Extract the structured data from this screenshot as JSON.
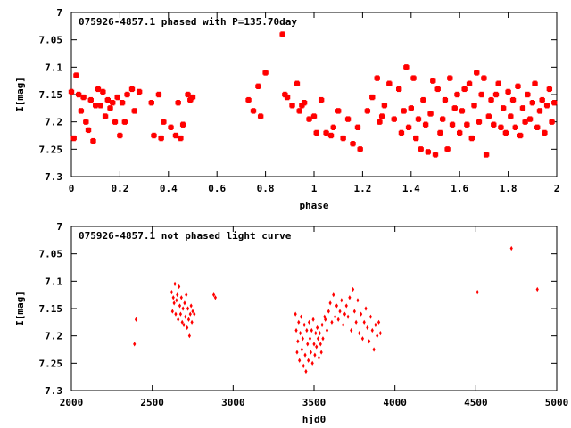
{
  "chart_data": [
    {
      "type": "scatter",
      "title": "075926-4857.1 phased with P=135.70day",
      "xlabel": "phase",
      "ylabel": "I[mag]",
      "xlim": [
        0,
        2
      ],
      "ylim": [
        7.3,
        7.0
      ],
      "y_inverted": true,
      "xticks": [
        "0",
        "0.2",
        "0.4",
        "0.6",
        "0.8",
        "1",
        "1.2",
        "1.4",
        "1.6",
        "1.8",
        "2"
      ],
      "yticks": [
        "7",
        "7.05",
        "7.1",
        "7.15",
        "7.2",
        "7.25",
        "7.3"
      ],
      "marker": "star",
      "color": "#ff0000",
      "grid": false,
      "series": [
        {
          "x": [
            0.0,
            0.01,
            0.02,
            0.03,
            0.04,
            0.05,
            0.06,
            0.07,
            0.08,
            0.09,
            0.1,
            0.11,
            0.12,
            0.13,
            0.14,
            0.15,
            0.16,
            0.17,
            0.18,
            0.19,
            0.2,
            0.21,
            0.22,
            0.23,
            0.25,
            0.26,
            0.28,
            0.33,
            0.34,
            0.36,
            0.37,
            0.38,
            0.41,
            0.43,
            0.44,
            0.45,
            0.46,
            0.48,
            0.49,
            0.5,
            0.73,
            0.75,
            0.77,
            0.78,
            0.8,
            0.87,
            0.88,
            0.89,
            0.91,
            0.93,
            0.94,
            0.95,
            0.96,
            0.98,
            1.0,
            1.01,
            1.03,
            1.05,
            1.07,
            1.08,
            1.1,
            1.12,
            1.14,
            1.16,
            1.18,
            1.19,
            1.22,
            1.24,
            1.26,
            1.27,
            1.28,
            1.29,
            1.31,
            1.33,
            1.35,
            1.36,
            1.37,
            1.38,
            1.39,
            1.4,
            1.41,
            1.42,
            1.43,
            1.44,
            1.45,
            1.46,
            1.47,
            1.48,
            1.49,
            1.5,
            1.51,
            1.52,
            1.53,
            1.54,
            1.55,
            1.56,
            1.57,
            1.58,
            1.59,
            1.6,
            1.61,
            1.62,
            1.63,
            1.64,
            1.65,
            1.66,
            1.67,
            1.68,
            1.69,
            1.7,
            1.71,
            1.72,
            1.73,
            1.74,
            1.75,
            1.76,
            1.77,
            1.78,
            1.79,
            1.8,
            1.81,
            1.82,
            1.83,
            1.84,
            1.85,
            1.86,
            1.87,
            1.88,
            1.89,
            1.9,
            1.91,
            1.92,
            1.93,
            1.94,
            1.95,
            1.96,
            1.97,
            1.98,
            1.99
          ],
          "y": [
            7.145,
            7.23,
            7.115,
            7.15,
            7.18,
            7.155,
            7.2,
            7.215,
            7.16,
            7.235,
            7.17,
            7.14,
            7.17,
            7.145,
            7.19,
            7.16,
            7.175,
            7.165,
            7.2,
            7.155,
            7.225,
            7.165,
            7.2,
            7.15,
            7.14,
            7.18,
            7.145,
            7.165,
            7.225,
            7.15,
            7.23,
            7.2,
            7.21,
            7.225,
            7.165,
            7.23,
            7.205,
            7.15,
            7.16,
            7.155,
            7.16,
            7.18,
            7.135,
            7.19,
            7.11,
            7.04,
            7.15,
            7.155,
            7.17,
            7.13,
            7.18,
            7.17,
            7.165,
            7.195,
            7.19,
            7.22,
            7.16,
            7.22,
            7.225,
            7.21,
            7.18,
            7.23,
            7.195,
            7.24,
            7.21,
            7.25,
            7.18,
            7.155,
            7.12,
            7.2,
            7.19,
            7.17,
            7.13,
            7.195,
            7.14,
            7.22,
            7.18,
            7.1,
            7.21,
            7.175,
            7.12,
            7.23,
            7.195,
            7.25,
            7.16,
            7.205,
            7.255,
            7.185,
            7.125,
            7.26,
            7.14,
            7.22,
            7.195,
            7.16,
            7.25,
            7.12,
            7.205,
            7.175,
            7.15,
            7.22,
            7.18,
            7.14,
            7.205,
            7.13,
            7.23,
            7.17,
            7.11,
            7.2,
            7.15,
            7.12,
            7.26,
            7.19,
            7.16,
            7.205,
            7.15,
            7.13,
            7.21,
            7.175,
            7.22,
            7.145,
            7.19,
            7.16,
            7.21,
            7.135,
            7.225,
            7.175,
            7.2,
            7.15,
            7.195,
            7.165,
            7.13,
            7.21,
            7.18,
            7.16,
            7.22,
            7.17,
            7.14,
            7.2,
            7.165
          ],
          "name": ""
        }
      ]
    },
    {
      "type": "scatter",
      "title": "075926-4857.1 not phased light curve",
      "xlabel": "hjd0",
      "ylabel": "I[mag]",
      "xlim": [
        2000,
        5000
      ],
      "ylim": [
        7.3,
        7.0
      ],
      "y_inverted": true,
      "xticks": [
        "2000",
        "2500",
        "3000",
        "3500",
        "4000",
        "4500",
        "5000"
      ],
      "yticks": [
        "7",
        "7.05",
        "7.1",
        "7.15",
        "7.2",
        "7.25",
        "7.3"
      ],
      "marker": "diamond",
      "color": "#ff0000",
      "grid": false,
      "series": [
        {
          "x": [
            2390,
            2400,
            2620,
            2625,
            2630,
            2635,
            2640,
            2645,
            2650,
            2655,
            2660,
            2665,
            2670,
            2675,
            2680,
            2685,
            2690,
            2695,
            2700,
            2705,
            2710,
            2715,
            2720,
            2725,
            2730,
            2735,
            2740,
            2745,
            2750,
            2760,
            2880,
            2890,
            3385,
            3390,
            3395,
            3400,
            3405,
            3410,
            3415,
            3420,
            3425,
            3430,
            3435,
            3440,
            3445,
            3450,
            3455,
            3460,
            3465,
            3470,
            3475,
            3480,
            3485,
            3490,
            3495,
            3500,
            3505,
            3510,
            3515,
            3520,
            3525,
            3530,
            3535,
            3540,
            3545,
            3550,
            3555,
            3565,
            3570,
            3580,
            3590,
            3600,
            3610,
            3620,
            3630,
            3640,
            3650,
            3660,
            3670,
            3680,
            3690,
            3700,
            3710,
            3720,
            3730,
            3740,
            3750,
            3760,
            3770,
            3780,
            3790,
            3800,
            3810,
            3820,
            3830,
            3840,
            3850,
            3860,
            3870,
            3880,
            3890,
            3900,
            3910,
            4510,
            4720,
            4880
          ],
          "y": [
            7.215,
            7.17,
            7.12,
            7.155,
            7.13,
            7.14,
            7.105,
            7.16,
            7.135,
            7.125,
            7.17,
            7.11,
            7.145,
            7.16,
            7.13,
            7.175,
            7.15,
            7.18,
            7.14,
            7.165,
            7.125,
            7.185,
            7.15,
            7.17,
            7.2,
            7.16,
            7.145,
            7.175,
            7.155,
            7.16,
            7.125,
            7.13,
            7.16,
            7.19,
            7.23,
            7.21,
            7.175,
            7.245,
            7.195,
            7.165,
            7.225,
            7.205,
            7.255,
            7.18,
            7.235,
            7.265,
            7.19,
            7.215,
            7.245,
            7.175,
            7.205,
            7.23,
            7.19,
            7.25,
            7.17,
            7.215,
            7.235,
            7.195,
            7.22,
            7.185,
            7.205,
            7.24,
            7.195,
            7.215,
            7.23,
            7.18,
            7.205,
            7.165,
            7.17,
            7.19,
            7.155,
            7.14,
            7.175,
            7.125,
            7.165,
            7.145,
            7.17,
            7.155,
            7.135,
            7.18,
            7.16,
            7.145,
            7.165,
            7.13,
            7.19,
            7.115,
            7.155,
            7.175,
            7.135,
            7.195,
            7.16,
            7.205,
            7.175,
            7.15,
            7.185,
            7.21,
            7.165,
            7.19,
            7.225,
            7.18,
            7.2,
            7.175,
            7.195,
            7.12,
            7.04,
            7.115
          ],
          "name": ""
        }
      ]
    }
  ]
}
